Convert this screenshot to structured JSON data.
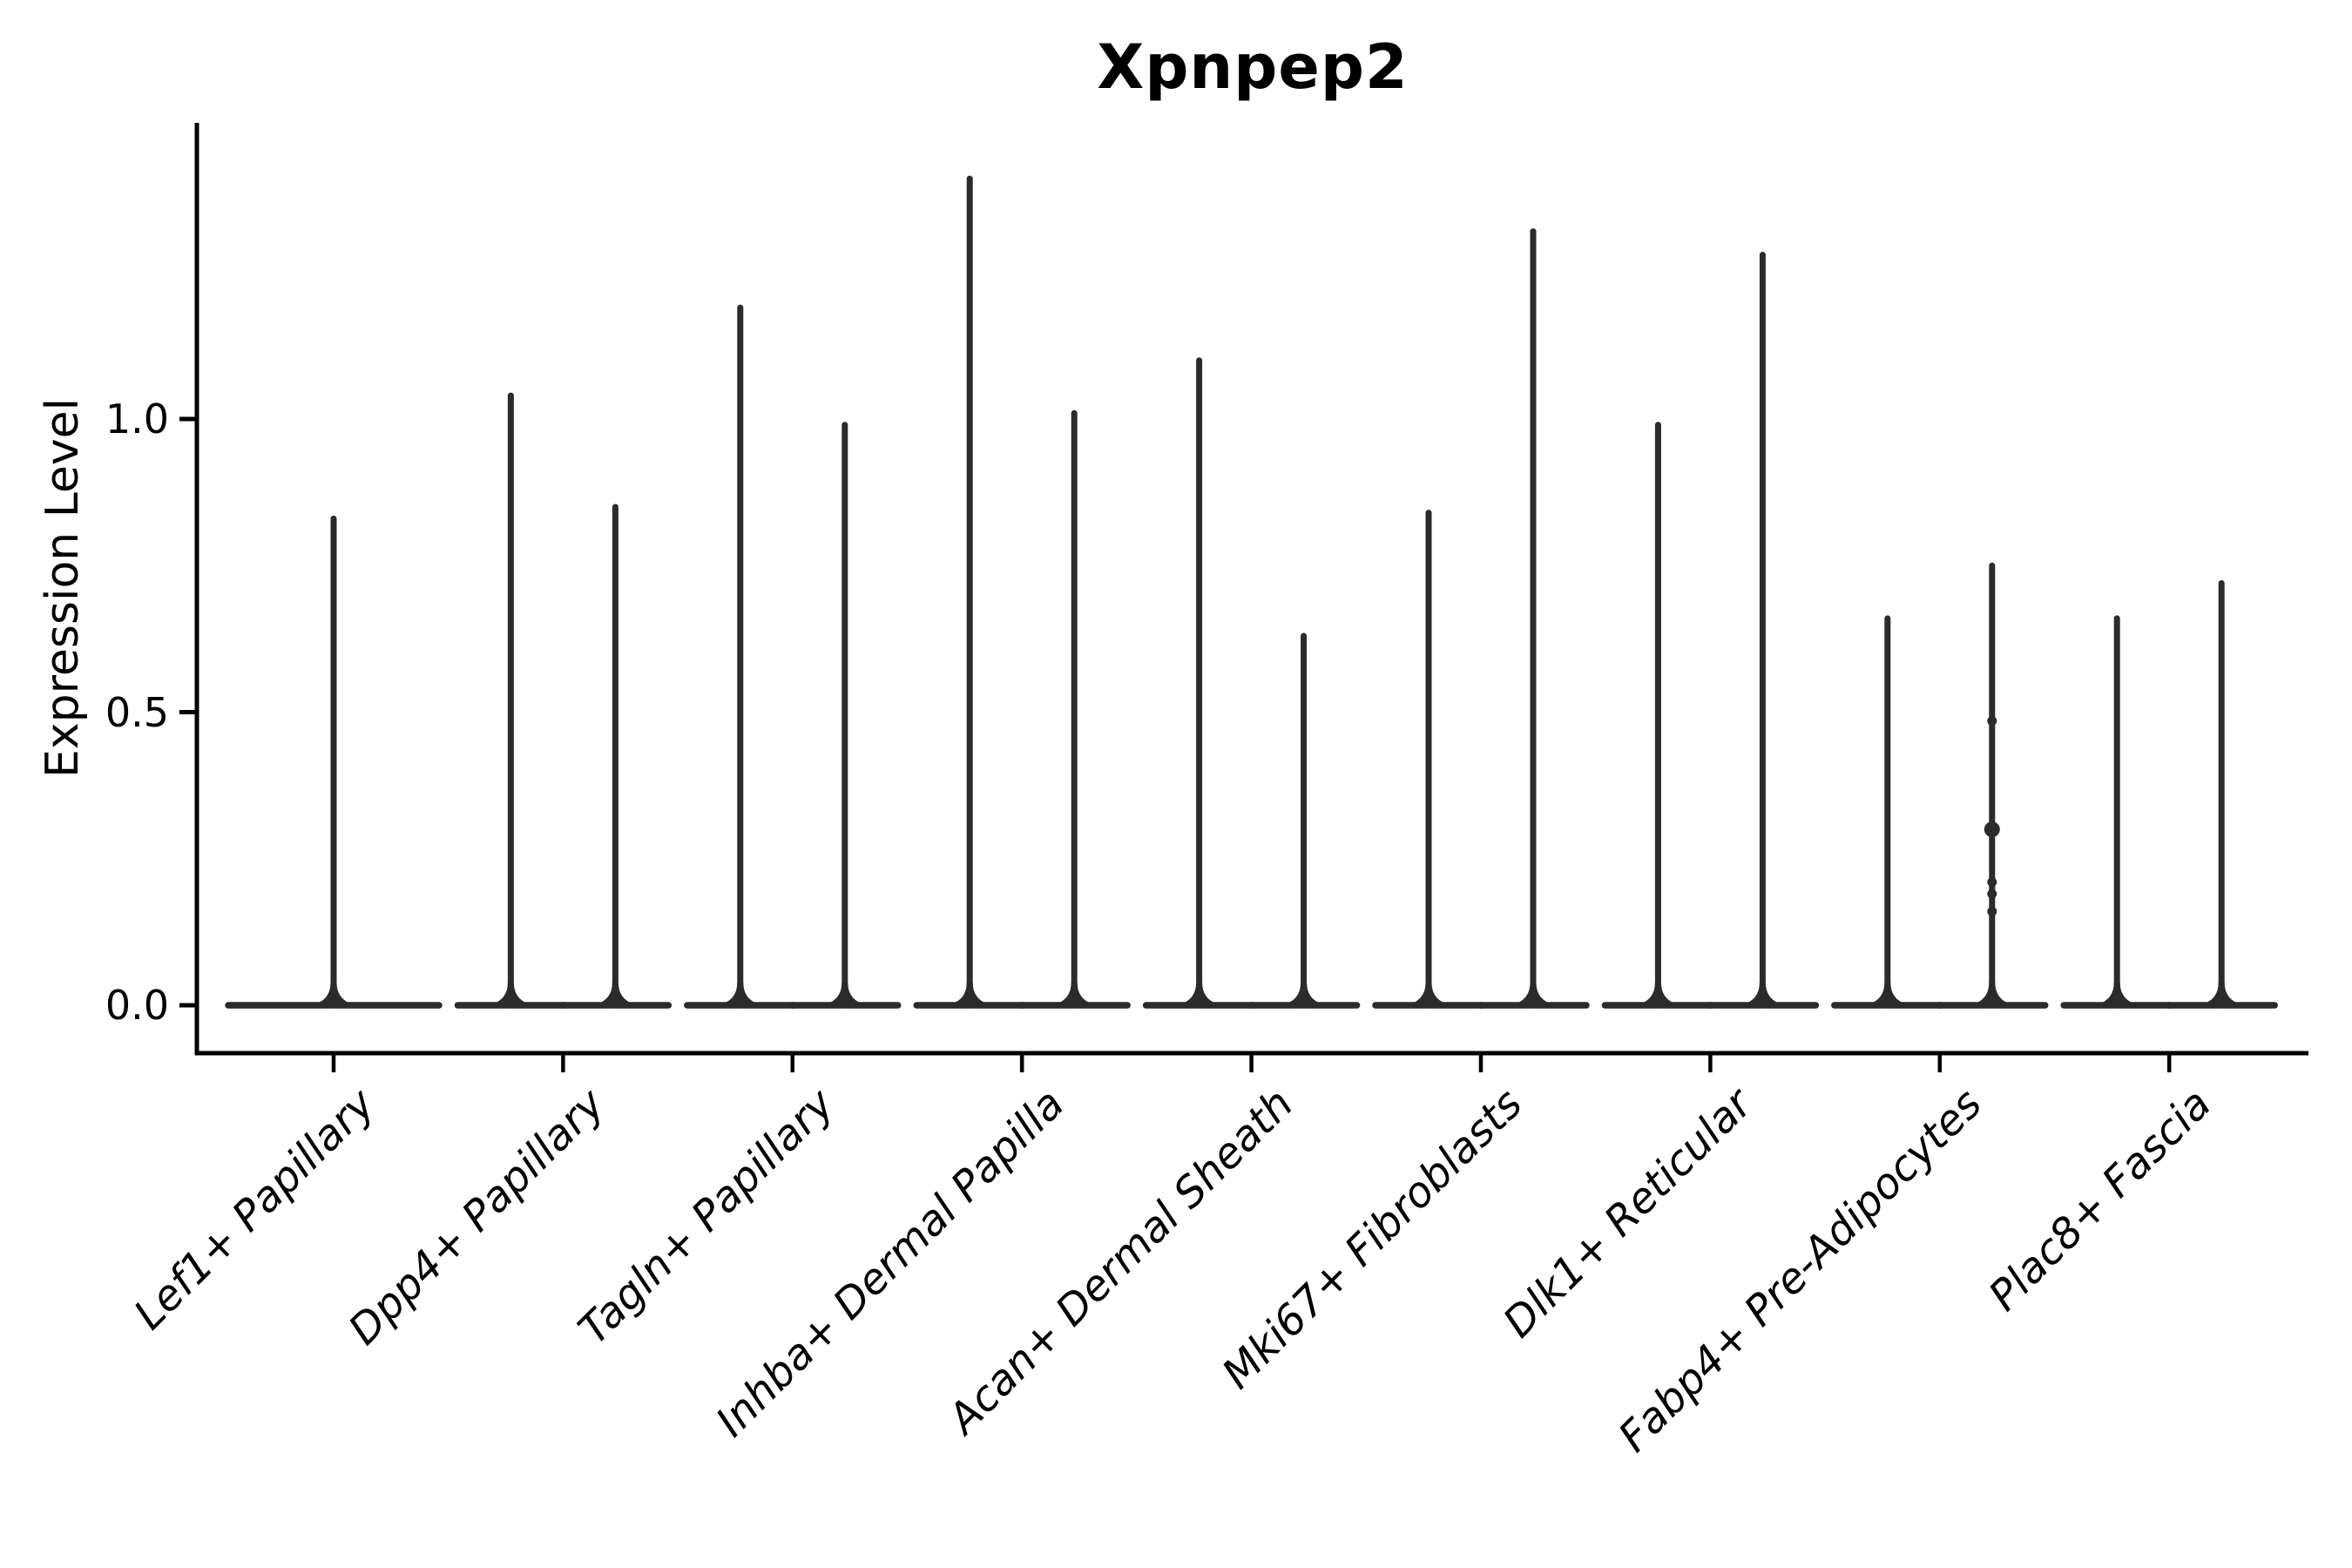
{
  "chart_data": {
    "type": "violin",
    "title": "Xpnpep2",
    "xlabel": "",
    "ylabel": "Expression Level",
    "yticks": [
      0.0,
      0.5,
      1.0
    ],
    "ylim": [
      -0.08,
      1.5
    ],
    "grid": false,
    "legend": "none",
    "categories": [
      "Lef1+ Papillary",
      "Dpp4+ Papillary",
      "Tagln+ Papillary",
      "Inhba+ Dermal Papilla",
      "Acan+ Dermal Sheath",
      "Mki67+ Fibroblasts",
      "Dlk1+ Reticular",
      "Fabp4+ Pre-Adipocytes",
      "Plac8+ Fascia"
    ],
    "description": "Split violin plot; expression concentrated at 0 so each violin renders as a flat baseline at 0 with a thin vertical spike up to its maximum expression value. First category has a single full-width violin; all others have two half-width violins.",
    "violins": [
      {
        "category": "Lef1+ Papillary",
        "max_values": [
          0.83
        ]
      },
      {
        "category": "Dpp4+ Papillary",
        "max_values": [
          1.04,
          0.85
        ]
      },
      {
        "category": "Tagln+ Papillary",
        "max_values": [
          1.19,
          0.99
        ]
      },
      {
        "category": "Inhba+ Dermal Papilla",
        "max_values": [
          1.41,
          1.01
        ]
      },
      {
        "category": "Acan+ Dermal Sheath",
        "max_values": [
          1.1,
          0.63
        ]
      },
      {
        "category": "Mki67+ Fibroblasts",
        "max_values": [
          0.84,
          1.32
        ]
      },
      {
        "category": "Dlk1+ Reticular",
        "max_values": [
          0.99,
          1.28
        ]
      },
      {
        "category": "Fabp4+ Pre-Adipocytes",
        "max_values": [
          0.66,
          0.75
        ],
        "jitter_points": {
          "violin": 1,
          "values": [
            0.485,
            0.3,
            0.21,
            0.19,
            0.16
          ],
          "sizes": [
            5.5,
            9,
            5.5,
            5.5,
            5.5
          ]
        }
      },
      {
        "category": "Plac8+ Fascia",
        "max_values": [
          0.66,
          0.72
        ]
      }
    ],
    "style": {
      "violin_color": "#2b2b2b",
      "axis_color": "#000000",
      "text_color": "#000000",
      "background": "#ffffff"
    }
  }
}
